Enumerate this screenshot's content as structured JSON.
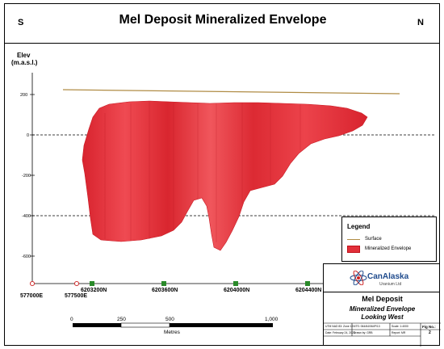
{
  "header": {
    "title": "Mel Deposit Mineralized Envelope",
    "direction_left": "S",
    "direction_right": "N"
  },
  "section": {
    "elev_axis_title": "Elev",
    "elev_axis_units": "(m.a.s.l.)",
    "elev_labels": [
      "200",
      "0",
      "-200",
      "-400",
      "-600"
    ],
    "northing_labels": [
      "6203200N",
      "6203600N",
      "6204000N",
      "6204400N"
    ],
    "easting_labels": [
      "577000E",
      "577500E"
    ],
    "colors": {
      "surface": "#b08c45",
      "envelope": "#e2303a",
      "northing": "#2a8a2a",
      "easting": "#cc2020"
    }
  },
  "legend": {
    "title": "Legend",
    "items": [
      {
        "label": "Surface",
        "icon": "surface-line-icon"
      },
      {
        "label": "Mineralized Envelope",
        "icon": "envelope-swatch-icon"
      }
    ]
  },
  "scale_bar": {
    "labels": [
      "0",
      "250",
      "500",
      "1,000"
    ],
    "unit": "Metres"
  },
  "logo": {
    "name": "CanAlaska",
    "subtitle": "Uranium Ltd"
  },
  "info": {
    "title": "Mel Deposit",
    "subtitle_1": "Mineralized Envelope",
    "subtitle_2": "Looking West",
    "cells": [
      "UTM NAD 83: Zone 13",
      "NTS: 064/64/064P/13",
      "Scale: 1:4000",
      "Fig No.:",
      "Date: February 24, 2023",
      "Drawn by: GRB",
      "Report: MR",
      "2"
    ]
  }
}
